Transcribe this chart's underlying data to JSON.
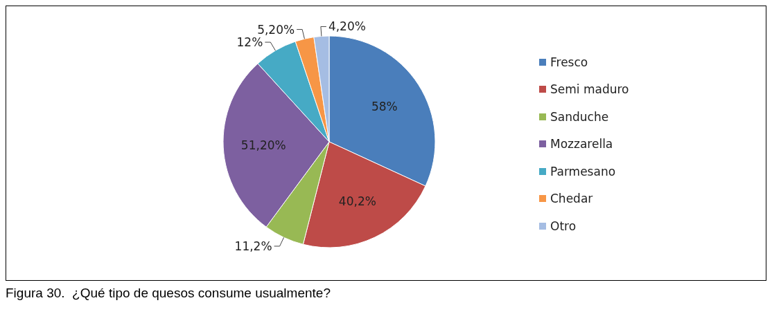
{
  "chart_data": {
    "type": "pie",
    "categories": [
      "Fresco",
      "Semi maduro",
      "Sanduche",
      "Mozzarella",
      "Parmesano",
      "Chedar",
      "Otro"
    ],
    "values": [
      58,
      40.2,
      11.2,
      51.2,
      12,
      5.2,
      4.2
    ],
    "value_labels": [
      "58%",
      "40,2%",
      "11,2%",
      "51,20%",
      "12%",
      "5,20%",
      "4,20%"
    ],
    "colors": [
      "#4a7ebb",
      "#be4b48",
      "#98b954",
      "#7d60a0",
      "#46aac5",
      "#f79646",
      "#a5bde3"
    ],
    "legend": "right",
    "annotations": [
      "Figura 30.  ¿Qué tipo de quesos consume usualmente?"
    ]
  }
}
